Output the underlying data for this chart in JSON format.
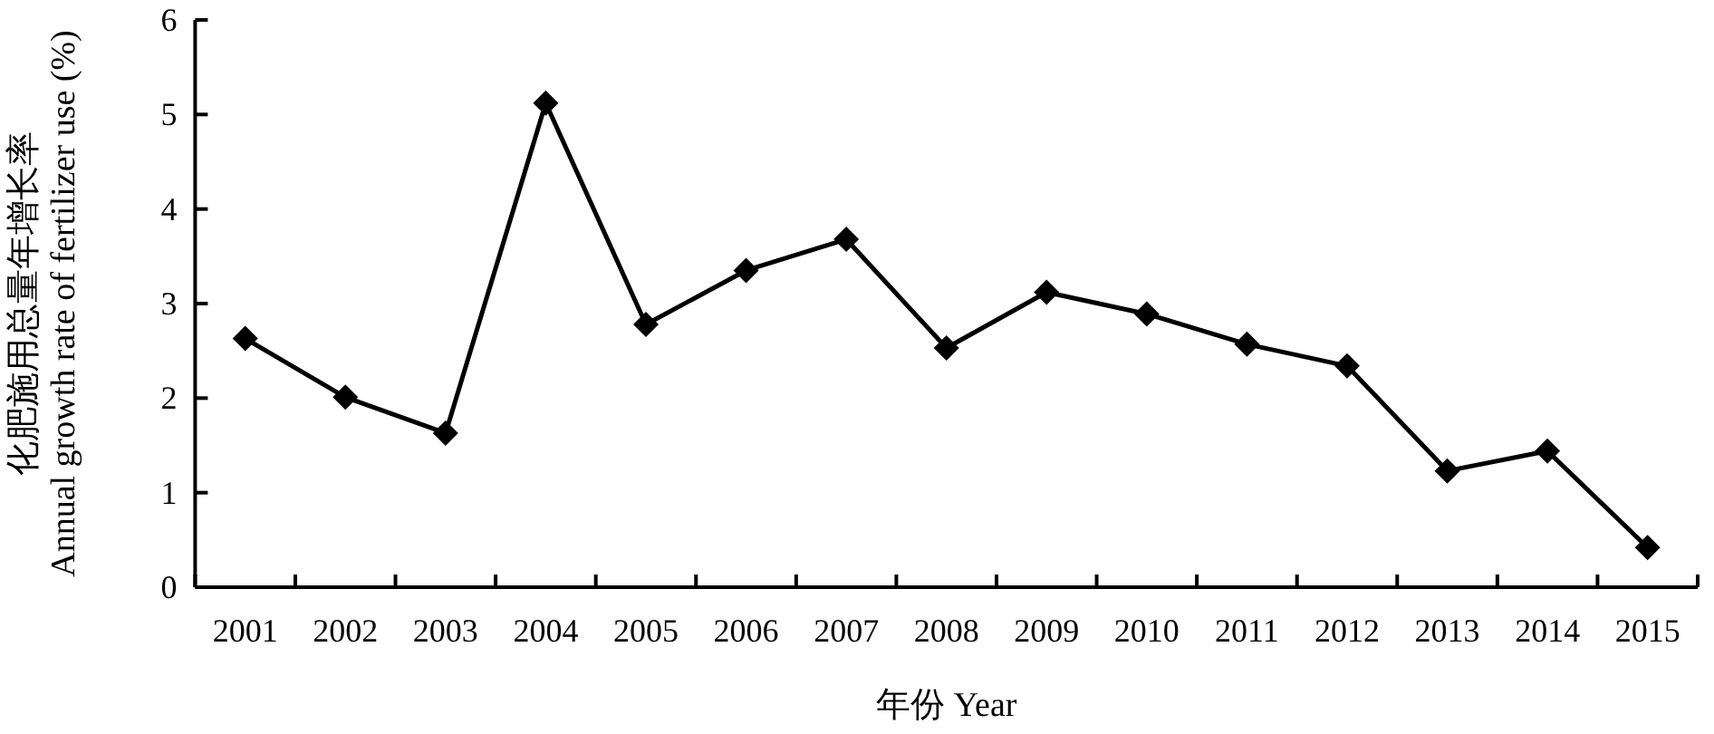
{
  "chart_data": {
    "type": "line",
    "xlabel": "年份 Year",
    "ylabel": "化肥施用总量年增长率 Annual growth rate of fertilizer use (%)",
    "categories": [
      "2001",
      "2002",
      "2003",
      "2004",
      "2005",
      "2006",
      "2007",
      "2008",
      "2009",
      "2010",
      "2011",
      "2012",
      "2013",
      "2014",
      "2015"
    ],
    "series": [
      {
        "color": "#000000",
        "values": [
          2.63,
          2.01,
          1.63,
          5.12,
          2.78,
          3.35,
          3.68,
          2.53,
          3.12,
          2.89,
          2.57,
          2.34,
          1.23,
          1.44,
          0.42
        ]
      }
    ],
    "ylim": [
      0,
      6
    ],
    "yticks": [
      0,
      1,
      2,
      3,
      4,
      5,
      6
    ],
    "grid": false,
    "marker": "diamond",
    "line_style": "solid"
  }
}
